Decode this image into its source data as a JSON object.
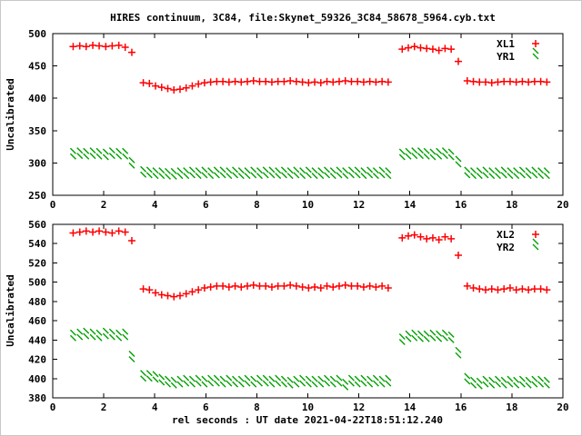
{
  "title": "HIRES continuum, 3C84, file:Skynet_59326_3C84_58678_5964.cyb.txt",
  "xlabel": "rel seconds : UT date 2021-04-22T18:51:12.240",
  "colors": {
    "xl_series": "#ff0000",
    "yr_series": "#00a000",
    "text": "#000000",
    "background": "#ffffff"
  },
  "chart_data": [
    {
      "type": "scatter",
      "panel": "top",
      "ylabel": "Uncalibrated",
      "ylim": [
        250,
        500
      ],
      "yticks": [
        250,
        300,
        350,
        400,
        450,
        500
      ],
      "xlim": [
        0,
        20
      ],
      "xticks": [
        0,
        2,
        4,
        6,
        8,
        10,
        12,
        14,
        16,
        18,
        20
      ],
      "grid": false,
      "legend_position": "top-right",
      "x": [
        0.8,
        1.06,
        1.31,
        1.57,
        1.82,
        2.08,
        2.33,
        2.59,
        2.84,
        3.1,
        3.55,
        3.79,
        4.03,
        4.27,
        4.51,
        4.75,
        4.99,
        5.23,
        5.47,
        5.71,
        5.95,
        6.19,
        6.43,
        6.67,
        6.91,
        7.15,
        7.39,
        7.63,
        7.87,
        8.11,
        8.35,
        8.59,
        8.83,
        9.07,
        9.31,
        9.55,
        9.79,
        10.03,
        10.27,
        10.51,
        10.75,
        10.99,
        11.23,
        11.47,
        11.71,
        11.95,
        12.19,
        12.43,
        12.67,
        12.91,
        13.15,
        13.7,
        13.94,
        14.18,
        14.42,
        14.66,
        14.9,
        15.14,
        15.38,
        15.62,
        15.9,
        16.25,
        16.49,
        16.73,
        16.97,
        17.21,
        17.45,
        17.69,
        17.93,
        18.17,
        18.41,
        18.65,
        18.89,
        19.13,
        19.37
      ],
      "series": [
        {
          "name": "XL1",
          "marker": "plus",
          "color": "#ff0000",
          "y": [
            480,
            481,
            480,
            482,
            481,
            480,
            481,
            482,
            479,
            471,
            424,
            423,
            419,
            417,
            415,
            413,
            414,
            416,
            419,
            422,
            424,
            425,
            426,
            426,
            425,
            426,
            425,
            426,
            427,
            426,
            426,
            425,
            426,
            426,
            427,
            426,
            425,
            424,
            425,
            424,
            426,
            425,
            426,
            427,
            426,
            426,
            425,
            426,
            425,
            426,
            425,
            476,
            478,
            480,
            478,
            477,
            476,
            474,
            477,
            476,
            457,
            427,
            426,
            425,
            425,
            424,
            425,
            426,
            426,
            425,
            426,
            425,
            426,
            426,
            425
          ]
        },
        {
          "name": "YR1",
          "marker": "cross",
          "color": "#00a000",
          "y": [
            310,
            311,
            310,
            311,
            310,
            309,
            311,
            310,
            310,
            296,
            282,
            281,
            280,
            280,
            279,
            279,
            280,
            280,
            281,
            280,
            281,
            280,
            281,
            281,
            280,
            281,
            280,
            280,
            281,
            280,
            281,
            281,
            280,
            281,
            280,
            281,
            280,
            281,
            280,
            280,
            281,
            280,
            281,
            280,
            281,
            281,
            280,
            281,
            280,
            281,
            280,
            309,
            310,
            311,
            311,
            310,
            309,
            310,
            311,
            309,
            298,
            281,
            280,
            280,
            281,
            280,
            280,
            281,
            280,
            280,
            281,
            280,
            281,
            280,
            280
          ]
        }
      ]
    },
    {
      "type": "scatter",
      "panel": "bottom",
      "ylabel": "Uncalibrated",
      "ylim": [
        380,
        560
      ],
      "yticks": [
        380,
        400,
        420,
        440,
        460,
        480,
        500,
        520,
        540,
        560
      ],
      "xlim": [
        0,
        20
      ],
      "xticks": [
        0,
        2,
        4,
        6,
        8,
        10,
        12,
        14,
        16,
        18,
        20
      ],
      "grid": false,
      "legend_position": "top-right",
      "x": [
        0.8,
        1.06,
        1.31,
        1.57,
        1.82,
        2.08,
        2.33,
        2.59,
        2.84,
        3.1,
        3.55,
        3.79,
        4.03,
        4.27,
        4.51,
        4.75,
        4.99,
        5.23,
        5.47,
        5.71,
        5.95,
        6.19,
        6.43,
        6.67,
        6.91,
        7.15,
        7.39,
        7.63,
        7.87,
        8.11,
        8.35,
        8.59,
        8.83,
        9.07,
        9.31,
        9.55,
        9.79,
        10.03,
        10.27,
        10.51,
        10.75,
        10.99,
        11.23,
        11.47,
        11.71,
        11.95,
        12.19,
        12.43,
        12.67,
        12.91,
        13.15,
        13.7,
        13.94,
        14.18,
        14.42,
        14.66,
        14.9,
        15.14,
        15.38,
        15.62,
        15.9,
        16.25,
        16.49,
        16.73,
        16.97,
        17.21,
        17.45,
        17.69,
        17.93,
        18.17,
        18.41,
        18.65,
        18.89,
        19.13,
        19.37
      ],
      "series": [
        {
          "name": "XL2",
          "marker": "plus",
          "color": "#ff0000",
          "y": [
            551,
            552,
            553,
            552,
            553,
            552,
            551,
            553,
            552,
            543,
            493,
            492,
            489,
            487,
            486,
            485,
            486,
            488,
            490,
            492,
            494,
            495,
            496,
            496,
            495,
            496,
            495,
            496,
            497,
            496,
            496,
            495,
            496,
            496,
            497,
            496,
            495,
            494,
            495,
            494,
            496,
            495,
            496,
            497,
            496,
            496,
            495,
            496,
            495,
            496,
            494,
            546,
            548,
            549,
            547,
            545,
            546,
            544,
            547,
            545,
            528,
            496,
            494,
            493,
            492,
            493,
            492,
            493,
            494,
            492,
            493,
            492,
            493,
            493,
            492
          ]
        },
        {
          "name": "YR2",
          "marker": "cross",
          "color": "#00a000",
          "y": [
            442,
            443,
            444,
            443,
            442,
            444,
            443,
            442,
            443,
            420,
            400,
            400,
            399,
            396,
            394,
            393,
            394,
            395,
            394,
            395,
            394,
            395,
            395,
            394,
            395,
            394,
            394,
            395,
            394,
            395,
            395,
            394,
            395,
            394,
            393,
            394,
            395,
            394,
            394,
            394,
            395,
            394,
            395,
            391,
            395,
            394,
            395,
            394,
            395,
            394,
            395,
            438,
            441,
            442,
            441,
            441,
            442,
            441,
            442,
            440,
            424,
            397,
            393,
            392,
            394,
            393,
            394,
            393,
            394,
            393,
            394,
            393,
            394,
            394,
            393
          ]
        }
      ]
    }
  ]
}
